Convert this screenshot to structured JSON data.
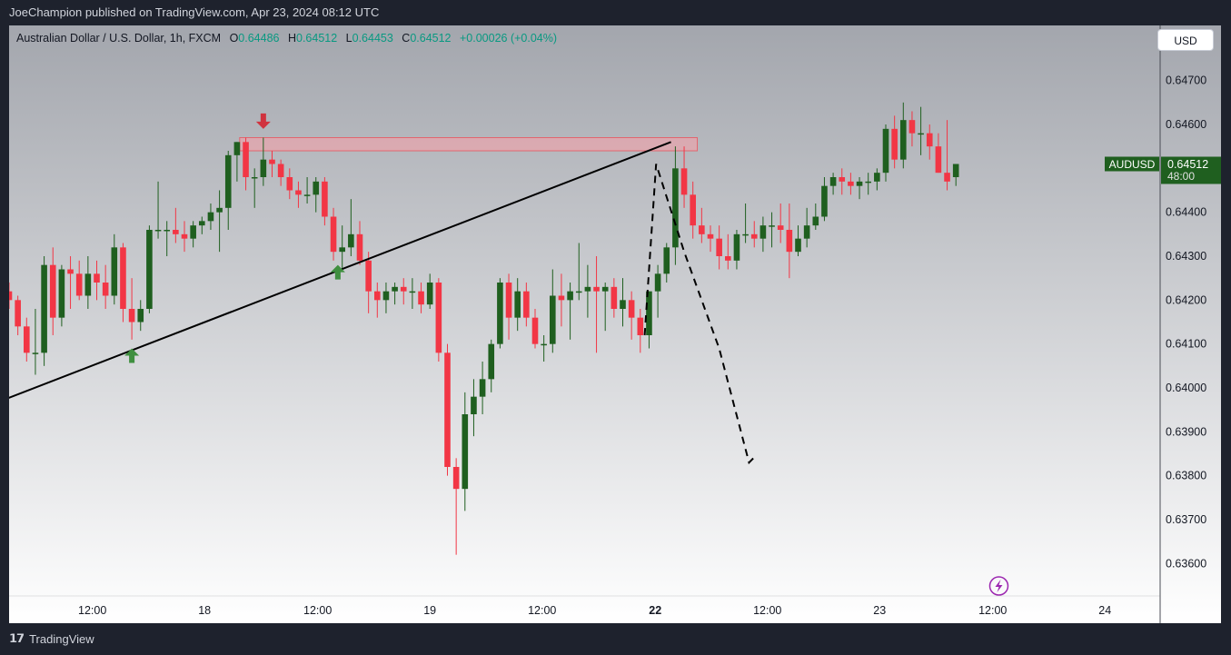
{
  "header": {
    "publish_text": "JoeChampion published on TradingView.com, Apr 23, 2024 08:12 UTC"
  },
  "legend": {
    "symbol": "Australian Dollar / U.S. Dollar, 1h, FXCM",
    "o_label": "O",
    "o_value": "0.64486",
    "h_label": "H",
    "h_value": "0.64512",
    "l_label": "L",
    "l_value": "0.64453",
    "c_label": "C",
    "c_value": "0.64512",
    "change": "+0.00026 (+0.04%)"
  },
  "currency_button": "USD",
  "price_tag": {
    "symbol": "AUDUSD",
    "price": "0.64512",
    "countdown": "48:00"
  },
  "footer": {
    "brand": "TradingView"
  },
  "colors": {
    "up": "#1f5f1f",
    "down": "#f23645",
    "zone": "#f4a0a8",
    "arrow_up": "#3f8f3f",
    "arrow_down": "#d0333f",
    "accent": "#9c27b0"
  },
  "chart_data": {
    "type": "candlestick",
    "title": "Australian Dollar / U.S. Dollar, 1h, FXCM",
    "ylim": [
      0.6355,
      0.6475
    ],
    "y_ticks": [
      "0.64700",
      "0.64600",
      "0.64400",
      "0.64300",
      "0.64200",
      "0.64100",
      "0.64000",
      "0.63900",
      "0.63800",
      "0.63700",
      "0.63600"
    ],
    "x_ticks": [
      {
        "label": "12:00",
        "i": 9.5,
        "bold": false
      },
      {
        "label": "18",
        "i": 22.3,
        "bold": false
      },
      {
        "label": "12:00",
        "i": 35.2,
        "bold": false
      },
      {
        "label": "19",
        "i": 48,
        "bold": false
      },
      {
        "label": "12:00",
        "i": 60.8,
        "bold": false
      },
      {
        "label": "22",
        "i": 73.7,
        "bold": true
      },
      {
        "label": "12:00",
        "i": 86.5,
        "bold": false
      },
      {
        "label": "23",
        "i": 99.3,
        "bold": false
      },
      {
        "label": "12:00",
        "i": 112.2,
        "bold": false
      },
      {
        "label": "24",
        "i": 125,
        "bold": false
      }
    ],
    "candles": [
      [
        0.6422,
        0.6424,
        0.6418,
        0.642
      ],
      [
        0.642,
        0.6421,
        0.6412,
        0.6414
      ],
      [
        0.6414,
        0.6416,
        0.6406,
        0.6408
      ],
      [
        0.6408,
        0.6418,
        0.6403,
        0.6408
      ],
      [
        0.6408,
        0.643,
        0.6405,
        0.6428
      ],
      [
        0.6428,
        0.6432,
        0.6412,
        0.6416
      ],
      [
        0.6416,
        0.6428,
        0.6414,
        0.6427
      ],
      [
        0.6427,
        0.643,
        0.6418,
        0.6426
      ],
      [
        0.6426,
        0.6429,
        0.642,
        0.6421
      ],
      [
        0.6421,
        0.643,
        0.6418,
        0.6426
      ],
      [
        0.6426,
        0.6429,
        0.642,
        0.6424
      ],
      [
        0.6424,
        0.6428,
        0.6418,
        0.6421
      ],
      [
        0.6421,
        0.6435,
        0.6419,
        0.6432
      ],
      [
        0.6432,
        0.6433,
        0.6415,
        0.6418
      ],
      [
        0.6418,
        0.6425,
        0.6411,
        0.6415
      ],
      [
        0.6415,
        0.642,
        0.6413,
        0.6418
      ],
      [
        0.6418,
        0.6437,
        0.6417,
        0.6436
      ],
      [
        0.6436,
        0.6447,
        0.6434,
        0.6436
      ],
      [
        0.6436,
        0.6438,
        0.643,
        0.6436
      ],
      [
        0.6436,
        0.6441,
        0.6433,
        0.6435
      ],
      [
        0.6435,
        0.6438,
        0.6431,
        0.6434
      ],
      [
        0.6434,
        0.6438,
        0.6432,
        0.6437
      ],
      [
        0.6437,
        0.6439,
        0.6435,
        0.6438
      ],
      [
        0.6438,
        0.6442,
        0.6436,
        0.644
      ],
      [
        0.644,
        0.6445,
        0.6431,
        0.6441
      ],
      [
        0.6441,
        0.6454,
        0.6436,
        0.6453
      ],
      [
        0.6453,
        0.6456,
        0.6447,
        0.6456
      ],
      [
        0.6456,
        0.6457,
        0.6445,
        0.6448
      ],
      [
        0.6448,
        0.645,
        0.6441,
        0.6448
      ],
      [
        0.6448,
        0.6457,
        0.6446,
        0.6452
      ],
      [
        0.6452,
        0.6454,
        0.6448,
        0.6451
      ],
      [
        0.6451,
        0.6452,
        0.6446,
        0.6448
      ],
      [
        0.6448,
        0.645,
        0.6443,
        0.6445
      ],
      [
        0.6445,
        0.6447,
        0.6441,
        0.6444
      ],
      [
        0.6444,
        0.6448,
        0.6442,
        0.6444
      ],
      [
        0.6444,
        0.6448,
        0.644,
        0.6447
      ],
      [
        0.6447,
        0.6448,
        0.6437,
        0.6439
      ],
      [
        0.6439,
        0.6441,
        0.6429,
        0.6431
      ],
      [
        0.6431,
        0.6437,
        0.6427,
        0.6432
      ],
      [
        0.6432,
        0.6443,
        0.643,
        0.6435
      ],
      [
        0.6435,
        0.6438,
        0.6428,
        0.6429
      ],
      [
        0.6429,
        0.6431,
        0.6417,
        0.6422
      ],
      [
        0.6422,
        0.6424,
        0.6416,
        0.642
      ],
      [
        0.642,
        0.6424,
        0.6417,
        0.6422
      ],
      [
        0.6422,
        0.6424,
        0.6419,
        0.6423
      ],
      [
        0.6423,
        0.6425,
        0.6419,
        0.6422
      ],
      [
        0.6422,
        0.6425,
        0.6418,
        0.6422
      ],
      [
        0.6422,
        0.6424,
        0.6417,
        0.6419
      ],
      [
        0.6419,
        0.6426,
        0.6418,
        0.6424
      ],
      [
        0.6424,
        0.6425,
        0.6406,
        0.6408
      ],
      [
        0.6408,
        0.641,
        0.638,
        0.6382
      ],
      [
        0.6382,
        0.6384,
        0.6362,
        0.6377
      ],
      [
        0.6377,
        0.6399,
        0.6372,
        0.6394
      ],
      [
        0.6394,
        0.6402,
        0.6389,
        0.6398
      ],
      [
        0.6398,
        0.6406,
        0.6394,
        0.6402
      ],
      [
        0.6402,
        0.6411,
        0.6399,
        0.641
      ],
      [
        0.641,
        0.6425,
        0.6409,
        0.6424
      ],
      [
        0.6424,
        0.6426,
        0.6411,
        0.6416
      ],
      [
        0.6416,
        0.6425,
        0.6413,
        0.6422
      ],
      [
        0.6422,
        0.6424,
        0.6414,
        0.6416
      ],
      [
        0.6416,
        0.6418,
        0.6409,
        0.641
      ],
      [
        0.641,
        0.6412,
        0.6406,
        0.641
      ],
      [
        0.641,
        0.6427,
        0.6408,
        0.6421
      ],
      [
        0.6421,
        0.6426,
        0.6414,
        0.642
      ],
      [
        0.642,
        0.6424,
        0.6411,
        0.6422
      ],
      [
        0.6422,
        0.6433,
        0.642,
        0.6422
      ],
      [
        0.6422,
        0.6428,
        0.6416,
        0.6423
      ],
      [
        0.6423,
        0.643,
        0.6408,
        0.6422
      ],
      [
        0.6422,
        0.6424,
        0.6413,
        0.6423
      ],
      [
        0.6423,
        0.6425,
        0.6416,
        0.6418
      ],
      [
        0.6418,
        0.6425,
        0.6414,
        0.642
      ],
      [
        0.642,
        0.6422,
        0.6411,
        0.6416
      ],
      [
        0.6416,
        0.6418,
        0.6408,
        0.6412
      ],
      [
        0.6412,
        0.6422,
        0.6409,
        0.6422
      ],
      [
        0.6422,
        0.6428,
        0.6416,
        0.6426
      ],
      [
        0.6426,
        0.6433,
        0.6424,
        0.6432
      ],
      [
        0.6432,
        0.6455,
        0.6428,
        0.645
      ],
      [
        0.645,
        0.6455,
        0.6441,
        0.6444
      ],
      [
        0.6444,
        0.6447,
        0.6434,
        0.6437
      ],
      [
        0.6437,
        0.6441,
        0.6433,
        0.6435
      ],
      [
        0.6435,
        0.6437,
        0.6431,
        0.6434
      ],
      [
        0.6434,
        0.6437,
        0.6427,
        0.643
      ],
      [
        0.643,
        0.6435,
        0.6427,
        0.6429
      ],
      [
        0.6429,
        0.6436,
        0.6427,
        0.6435
      ],
      [
        0.6435,
        0.6442,
        0.6433,
        0.6435
      ],
      [
        0.6435,
        0.6438,
        0.6432,
        0.6434
      ],
      [
        0.6434,
        0.6439,
        0.6431,
        0.6437
      ],
      [
        0.6437,
        0.644,
        0.6432,
        0.6437
      ],
      [
        0.6437,
        0.6442,
        0.6433,
        0.6436
      ],
      [
        0.6436,
        0.6442,
        0.6425,
        0.6431
      ],
      [
        0.6431,
        0.6437,
        0.643,
        0.6434
      ],
      [
        0.6434,
        0.6441,
        0.6432,
        0.6437
      ],
      [
        0.6437,
        0.6442,
        0.6436,
        0.6439
      ],
      [
        0.6439,
        0.6448,
        0.6438,
        0.6446
      ],
      [
        0.6446,
        0.6449,
        0.6444,
        0.6448
      ],
      [
        0.6448,
        0.645,
        0.6444,
        0.6447
      ],
      [
        0.6447,
        0.6449,
        0.6444,
        0.6446
      ],
      [
        0.6446,
        0.6448,
        0.6443,
        0.6447
      ],
      [
        0.6447,
        0.6449,
        0.6444,
        0.6447
      ],
      [
        0.6447,
        0.645,
        0.6445,
        0.6449
      ],
      [
        0.6449,
        0.646,
        0.6447,
        0.6459
      ],
      [
        0.6459,
        0.6462,
        0.645,
        0.6452
      ],
      [
        0.6452,
        0.6465,
        0.645,
        0.6461
      ],
      [
        0.6461,
        0.6463,
        0.6455,
        0.6458
      ],
      [
        0.6458,
        0.6464,
        0.6453,
        0.6458
      ],
      [
        0.6458,
        0.646,
        0.6452,
        0.6455
      ],
      [
        0.6455,
        0.6458,
        0.6449,
        0.6449
      ],
      [
        0.6449,
        0.6461,
        0.6445,
        0.6447
      ],
      [
        0.6448,
        0.6451,
        0.6446,
        0.6451
      ]
    ],
    "resistance_zone": [
      0.6454,
      0.6457
    ],
    "trendline": [
      [
        -1,
        0.6397
      ],
      [
        75.5,
        0.6456
      ]
    ],
    "projection": [
      [
        72.5,
        0.6412
      ],
      [
        73.8,
        0.6451
      ],
      [
        77,
        0.6431
      ],
      [
        81,
        0.6409
      ],
      [
        84.4,
        0.6383
      ],
      [
        84.9,
        0.6384
      ]
    ]
  }
}
